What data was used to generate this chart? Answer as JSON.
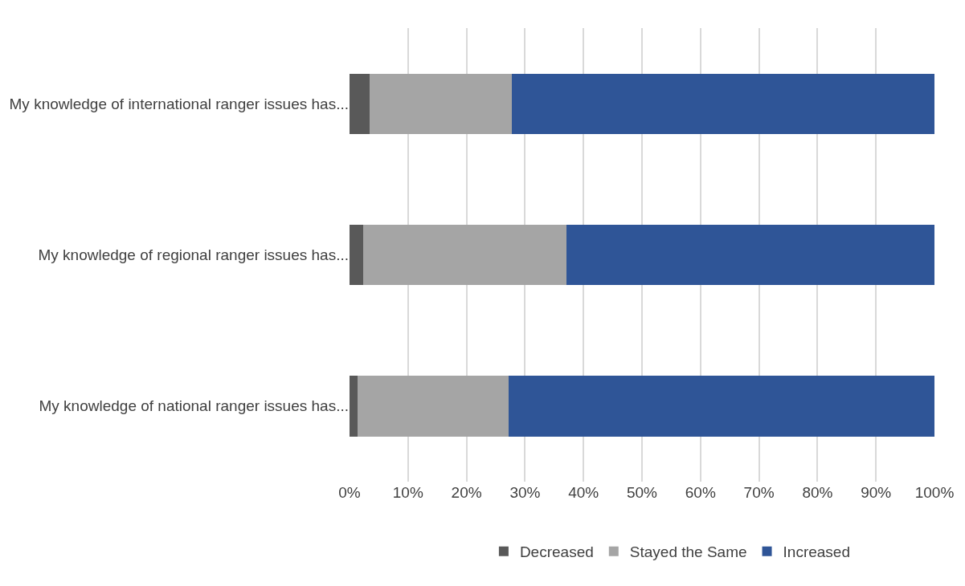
{
  "chart_data": {
    "type": "bar",
    "orientation": "horizontal",
    "stacked": true,
    "categories": [
      "My knowledge of international ranger issues has...",
      "My knowledge of regional ranger issues has...",
      "My knowledge of national ranger issues has..."
    ],
    "series": [
      {
        "name": "Decreased",
        "color": "#595959",
        "values": [
          3.5,
          2.4,
          1.4
        ]
      },
      {
        "name": "Stayed the Same",
        "color": "#a5a5a5",
        "values": [
          24.3,
          34.7,
          25.8
        ]
      },
      {
        "name": "Increased",
        "color": "#2f5597",
        "values": [
          72.2,
          62.9,
          72.8
        ]
      }
    ],
    "xlim": [
      0,
      100
    ],
    "xticks": [
      {
        "value": 0,
        "label": "0%"
      },
      {
        "value": 10,
        "label": "10%"
      },
      {
        "value": 20,
        "label": "20%"
      },
      {
        "value": 30,
        "label": "30%"
      },
      {
        "value": 40,
        "label": "40%"
      },
      {
        "value": 50,
        "label": "50%"
      },
      {
        "value": 60,
        "label": "60%"
      },
      {
        "value": 70,
        "label": "70%"
      },
      {
        "value": 80,
        "label": "80%"
      },
      {
        "value": 90,
        "label": "90%"
      },
      {
        "value": 100,
        "label": "100%"
      }
    ],
    "grid": "x",
    "legend": "bottom"
  }
}
